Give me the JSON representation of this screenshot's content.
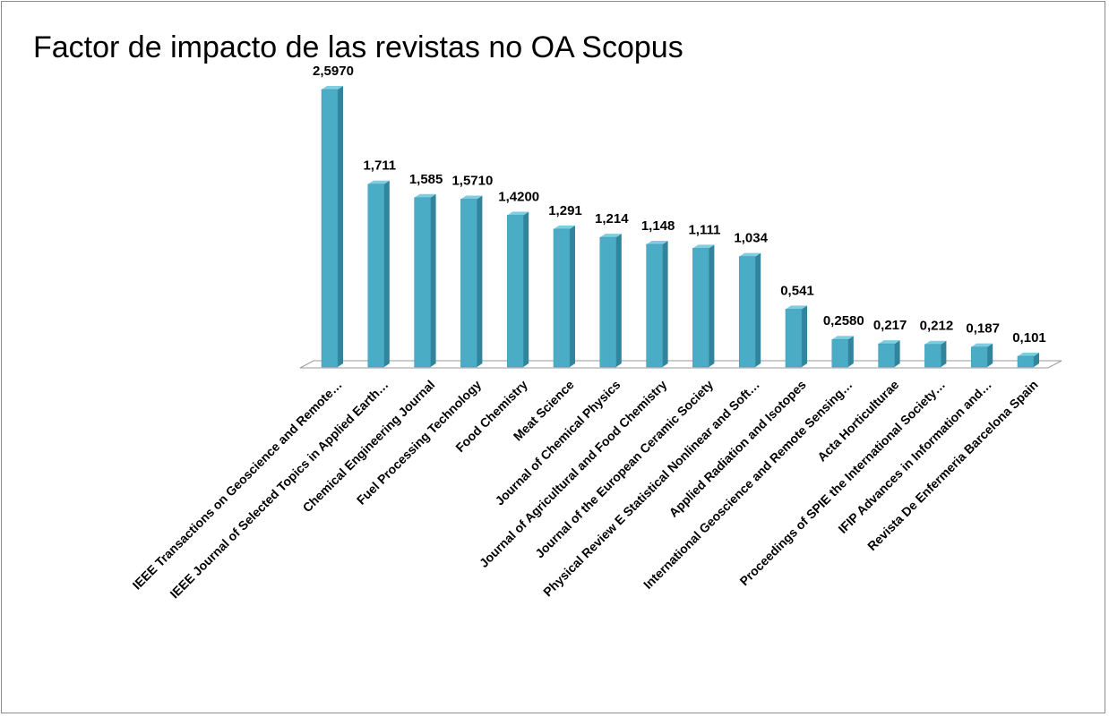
{
  "chart_data": {
    "type": "bar",
    "title": "Factor de impacto de las revistas no OA Scopus",
    "categories": [
      "IEEE Transactions on Geoscience and Remote…",
      "IEEE Journal of Selected Topics in Applied Earth…",
      "Chemical Engineering Journal",
      "Fuel Processing Technology",
      "Food Chemistry",
      "Meat Science",
      "Journal of Chemical Physics",
      "Journal of Agricultural and Food Chemistry",
      "Journal of the European Ceramic Society",
      "Physical Review E Statistical Nonlinear and Soft…",
      "Applied Radiation and Isotopes",
      "International Geoscience and Remote Sensing…",
      "Acta Horticulturae",
      "Proceedings of SPIE the International Society…",
      "IFIP Advances in Information and…",
      "Revista De Enfermeria Barcelona Spain"
    ],
    "values": [
      2.597,
      1.711,
      1.585,
      1.571,
      1.42,
      1.291,
      1.214,
      1.148,
      1.111,
      1.034,
      0.541,
      0.258,
      0.217,
      0.212,
      0.187,
      0.101
    ],
    "value_labels": [
      "2,5970",
      "1,711",
      "1,585",
      "1,5710",
      "1,4200",
      "1,291",
      "1,214",
      "1,148",
      "1,111",
      "1,034",
      "0,541",
      "0,2580",
      "0,217",
      "0,212",
      "0,187",
      "0,101"
    ],
    "color": "#4bacc6"
  }
}
